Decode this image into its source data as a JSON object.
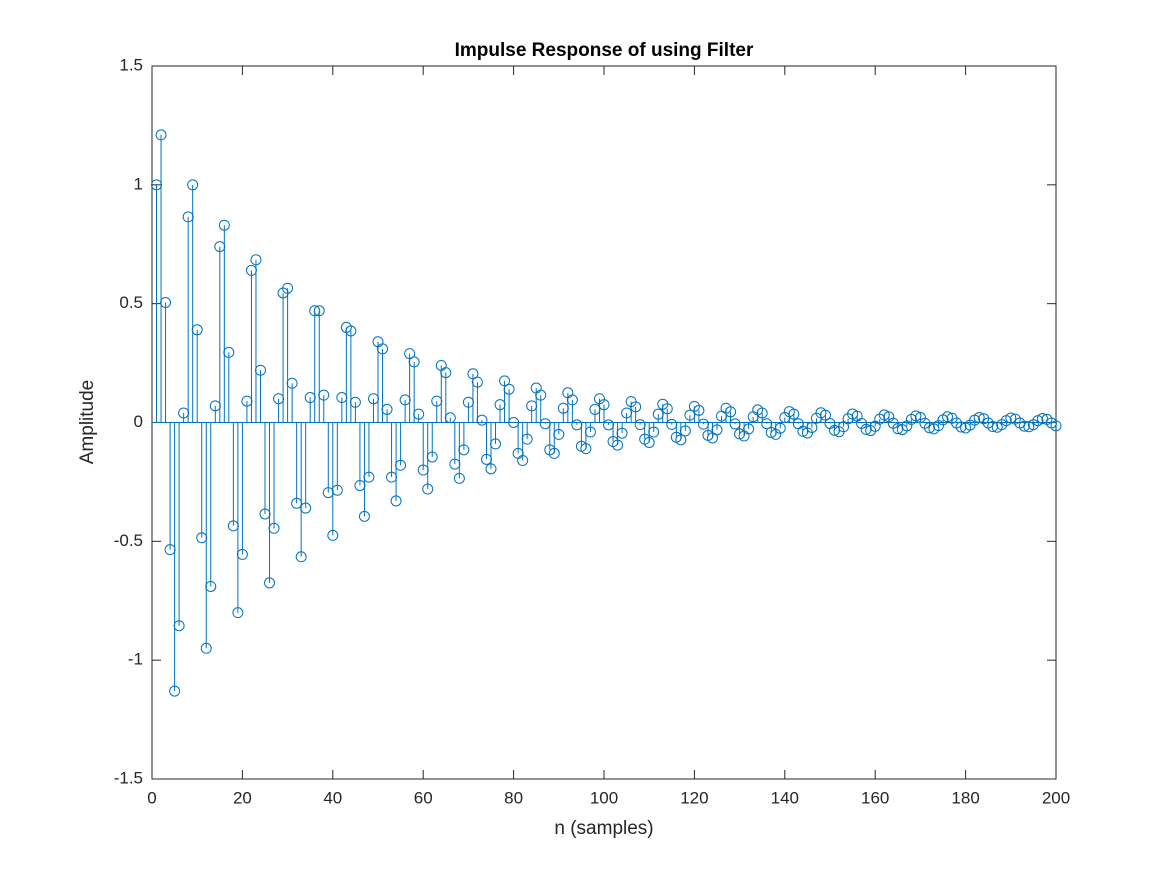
{
  "chart_data": {
    "type": "stem",
    "title": "Impulse Response of using Filter",
    "x_label": "n (samples)",
    "y_label": "Amplitude",
    "color": "#0072BD",
    "xlim": [
      0,
      200
    ],
    "xticks": [
      0,
      20,
      40,
      60,
      80,
      100,
      120,
      140,
      160,
      180,
      200
    ],
    "ylim": [
      -1.5,
      1.5
    ],
    "yticks": [
      -1.5,
      -1,
      -0.5,
      0,
      0.5,
      1,
      1.5
    ],
    "x": [
      1,
      2,
      3,
      4,
      5,
      6,
      7,
      8,
      9,
      10,
      11,
      12,
      13,
      14,
      15,
      16,
      17,
      18,
      19,
      20,
      21,
      22,
      23,
      24,
      25,
      26,
      27,
      28,
      29,
      30,
      31,
      32,
      33,
      34,
      35,
      36,
      37,
      38,
      39,
      40,
      41,
      42,
      43,
      44,
      45,
      46,
      47,
      48,
      49,
      50,
      51,
      52,
      53,
      54,
      55,
      56,
      57,
      58,
      59,
      60,
      61,
      62,
      63,
      64,
      65,
      66,
      67,
      68,
      69,
      70,
      71,
      72,
      73,
      74,
      75,
      76,
      77,
      78,
      79,
      80,
      81,
      82,
      83,
      84,
      85,
      86,
      87,
      88,
      89,
      90,
      91,
      92,
      93,
      94,
      95,
      96,
      97,
      98,
      99,
      100,
      101,
      102,
      103,
      104,
      105,
      106,
      107,
      108,
      109,
      110,
      111,
      112,
      113,
      114,
      115,
      116,
      117,
      118,
      119,
      120,
      121,
      122,
      123,
      124,
      125,
      126,
      127,
      128,
      129,
      130,
      131,
      132,
      133,
      134,
      135,
      136,
      137,
      138,
      139,
      140,
      141,
      142,
      143,
      144,
      145,
      146,
      147,
      148,
      149,
      150,
      151,
      152,
      153,
      154,
      155,
      156,
      157,
      158,
      159,
      160,
      161,
      162,
      163,
      164,
      165,
      166,
      167,
      168,
      169,
      170,
      171,
      172,
      173,
      174,
      175,
      176,
      177,
      178,
      179,
      180,
      181,
      182,
      183,
      184,
      185,
      186,
      187,
      188,
      189,
      190,
      191,
      192,
      193,
      194,
      195,
      196,
      197,
      198,
      199,
      200
    ],
    "values": [
      1.0,
      1.21,
      0.505,
      -0.535,
      -1.13,
      -0.855,
      0.04,
      0.865,
      1.0,
      0.39,
      -0.485,
      -0.95,
      -0.69,
      0.07,
      0.74,
      0.83,
      0.295,
      -0.435,
      -0.8,
      -0.555,
      0.09,
      0.64,
      0.685,
      0.22,
      -0.385,
      -0.675,
      -0.445,
      0.1,
      0.545,
      0.565,
      0.165,
      -0.34,
      -0.565,
      -0.36,
      0.105,
      0.47,
      0.47,
      0.115,
      -0.295,
      -0.475,
      -0.285,
      0.105,
      0.4,
      0.385,
      0.085,
      -0.265,
      -0.395,
      -0.23,
      0.1,
      0.34,
      0.31,
      0.055,
      -0.23,
      -0.33,
      -0.18,
      0.095,
      0.29,
      0.255,
      0.035,
      -0.2,
      -0.28,
      -0.145,
      0.09,
      0.24,
      0.21,
      0.02,
      -0.175,
      -0.235,
      -0.115,
      0.085,
      0.205,
      0.17,
      0.01,
      -0.155,
      -0.195,
      -0.09,
      0.075,
      0.175,
      0.14,
      0.0,
      -0.13,
      -0.16,
      -0.07,
      0.07,
      0.145,
      0.115,
      -0.005,
      -0.115,
      -0.13,
      -0.05,
      0.06,
      0.125,
      0.095,
      -0.01,
      -0.1,
      -0.11,
      -0.04,
      0.055,
      0.1,
      0.075,
      -0.01,
      -0.08,
      -0.095,
      -0.045,
      0.04,
      0.088,
      0.066,
      -0.009,
      -0.07,
      -0.084,
      -0.04,
      0.035,
      0.077,
      0.058,
      -0.008,
      -0.062,
      -0.073,
      -0.035,
      0.031,
      0.068,
      0.051,
      -0.007,
      -0.054,
      -0.065,
      -0.031,
      0.027,
      0.06,
      0.045,
      -0.006,
      -0.048,
      -0.057,
      -0.027,
      0.024,
      0.053,
      0.04,
      -0.005,
      -0.042,
      -0.05,
      -0.024,
      0.021,
      0.046,
      0.035,
      -0.005,
      -0.037,
      -0.044,
      -0.021,
      0.018,
      0.041,
      0.031,
      -0.004,
      -0.033,
      -0.039,
      -0.018,
      0.016,
      0.036,
      0.027,
      -0.004,
      -0.029,
      -0.034,
      -0.016,
      0.014,
      0.032,
      0.024,
      -0.003,
      -0.026,
      -0.03,
      -0.014,
      0.013,
      0.028,
      0.021,
      -0.003,
      -0.022,
      -0.027,
      -0.013,
      0.011,
      0.024,
      0.018,
      -0.002,
      -0.019,
      -0.023,
      -0.011,
      0.01,
      0.021,
      0.016,
      -0.002,
      -0.017,
      -0.02,
      -0.009,
      0.008,
      0.019,
      0.014,
      -0.002,
      -0.015,
      -0.018,
      -0.009,
      0.008,
      0.017,
      0.013,
      -0.002,
      -0.014
    ]
  }
}
